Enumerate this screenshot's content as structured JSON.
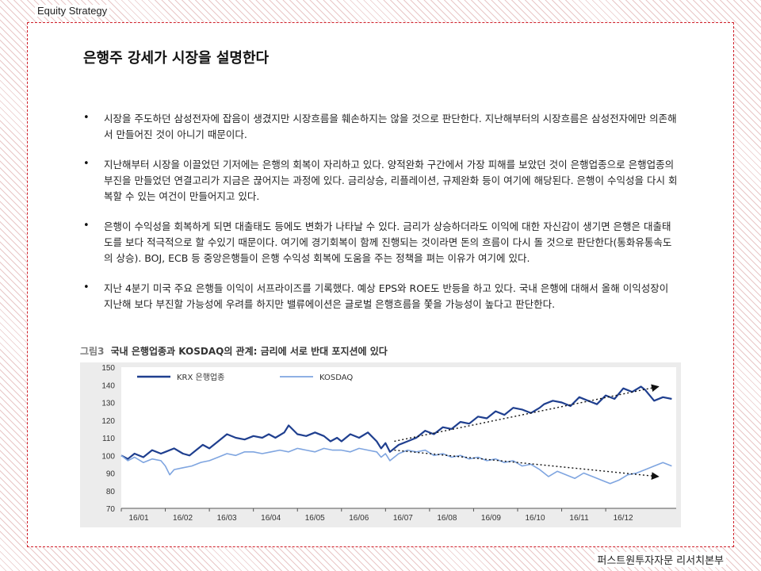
{
  "header": {
    "label": "Equity  Strategy"
  },
  "slide": {
    "title": "은행주 강세가 시장을 설명한다"
  },
  "bullets": [
    "시장을 주도하던 삼성전자에 잡음이 생겼지만 시장흐름을 훼손하지는 않을 것으로 판단한다. 지난해부터의 시장흐름은 삼성전자에만 의존해서 만들어진 것이 아니기 때문이다.",
    "지난해부터 시장을 이끌었던 기저에는 은행의 회복이 자리하고 있다. 양적완화 구간에서 가장 피해를 보았던 것이 은행업종으로 은행업종의 부진을 만들었던 연결고리가 지금은 끊어지는 과정에 있다. 금리상승, 리플레이션, 규제완화 등이 여기에 해당된다. 은행이 수익성을 다시 회복할 수 있는 여건이 만들어지고 있다.",
    "은행이 수익성을 회복하게 되면 대출태도 등에도 변화가 나타날 수 있다. 금리가 상승하더라도 이익에 대한 자신감이 생기면 은행은 대출태도를 보다 적극적으로 할 수있기 때문이다. 여기에 경기회복이 함께 진행되는 것이라면 돈의 흐름이 다시 돌 것으로 판단한다(통화유통속도의 상승). BOJ, ECB 등 중앙은행들이 은행 수익성 회복에 도움을 주는 정책을 펴는 이유가 여기에 있다.",
    "지난 4분기 미국 주요 은행들 이익이 서프라이즈를 기록했다. 예상 EPS와 ROE도 반등을 하고 있다. 국내 은행에 대해서 올해 이익성장이 지난해 보다 부진할 가능성에 우려를 하지만 밸류에이션은 글로벌 은행흐름을 쫓을 가능성이 높다고 판단한다."
  ],
  "figure": {
    "number": "그림3",
    "caption": "국내 은행업종과 KOSDAQ의 관계: 금리에 서로 반대 포지션에 있다"
  },
  "footer": {
    "label": "퍼스트원투자자문 리서치본부"
  },
  "colors": {
    "krx_bank": "#1f3f8f",
    "kosdaq": "#7fa5e0",
    "panel_border": "#d0202a",
    "chart_bg": "#ececec",
    "trend_arrow": "#111111"
  },
  "chart_data": {
    "type": "line",
    "x_ticks": [
      "16/01",
      "16/02",
      "16/03",
      "16/04",
      "16/05",
      "16/06",
      "16/07",
      "16/08",
      "16/09",
      "16/10",
      "16/11",
      "16/12"
    ],
    "y_ticks": [
      70,
      80,
      90,
      100,
      110,
      120,
      130,
      140,
      150
    ],
    "ylim": [
      70,
      150
    ],
    "xlim": [
      0,
      12.6
    ],
    "grid": false,
    "legend_position": "top-left",
    "series": [
      {
        "name": "KRX 은행업종",
        "color": "#1f3f8f",
        "x": [
          0,
          0.15,
          0.3,
          0.5,
          0.7,
          0.9,
          1.0,
          1.2,
          1.4,
          1.55,
          1.7,
          1.85,
          2.0,
          2.2,
          2.4,
          2.6,
          2.8,
          3.0,
          3.2,
          3.35,
          3.5,
          3.7,
          3.8,
          4.0,
          4.2,
          4.4,
          4.6,
          4.75,
          4.9,
          5.0,
          5.2,
          5.4,
          5.6,
          5.8,
          5.9,
          6.0,
          6.1,
          6.3,
          6.5,
          6.7,
          6.9,
          7.1,
          7.3,
          7.5,
          7.7,
          7.9,
          8.1,
          8.3,
          8.5,
          8.7,
          8.9,
          9.1,
          9.3,
          9.5,
          9.6,
          9.8,
          10.0,
          10.2,
          10.4,
          10.6,
          10.8,
          11.0,
          11.2,
          11.4,
          11.6,
          11.8,
          11.9,
          12.1,
          12.3,
          12.5
        ],
        "values": [
          100,
          98,
          101,
          99,
          103,
          101,
          102,
          104,
          101,
          100,
          103,
          106,
          104,
          108,
          112,
          110,
          109,
          111,
          110,
          112,
          110,
          113,
          117,
          112,
          111,
          113,
          111,
          108,
          110,
          108,
          112,
          110,
          113,
          108,
          104,
          107,
          102,
          106,
          108,
          110,
          114,
          112,
          116,
          115,
          119,
          118,
          122,
          121,
          125,
          123,
          127,
          126,
          124,
          127,
          129,
          131,
          130,
          128,
          133,
          131,
          129,
          134,
          132,
          138,
          136,
          139,
          137,
          131,
          133,
          132
        ]
      },
      {
        "name": "KOSDAQ",
        "color": "#7fa5e0",
        "x": [
          0,
          0.15,
          0.3,
          0.5,
          0.7,
          0.9,
          1.0,
          1.1,
          1.2,
          1.4,
          1.6,
          1.8,
          2.0,
          2.2,
          2.4,
          2.6,
          2.8,
          3.0,
          3.2,
          3.4,
          3.6,
          3.8,
          4.0,
          4.2,
          4.4,
          4.6,
          4.8,
          5.0,
          5.2,
          5.4,
          5.6,
          5.8,
          5.9,
          6.0,
          6.1,
          6.3,
          6.5,
          6.7,
          6.9,
          7.1,
          7.3,
          7.5,
          7.7,
          7.9,
          8.1,
          8.3,
          8.5,
          8.7,
          8.9,
          9.1,
          9.3,
          9.5,
          9.7,
          9.9,
          10.1,
          10.3,
          10.5,
          10.7,
          10.9,
          11.1,
          11.3,
          11.5,
          11.7,
          11.9,
          12.1,
          12.3,
          12.5
        ],
        "values": [
          100,
          97,
          99,
          96,
          98,
          97,
          94,
          89,
          92,
          93,
          94,
          96,
          97,
          99,
          101,
          100,
          102,
          102,
          101,
          102,
          103,
          102,
          104,
          103,
          102,
          104,
          103,
          103,
          102,
          104,
          103,
          102,
          99,
          101,
          97,
          101,
          103,
          102,
          103,
          100,
          101,
          99,
          100,
          98,
          99,
          97,
          98,
          96,
          97,
          94,
          95,
          92,
          88,
          91,
          89,
          87,
          90,
          88,
          86,
          84,
          86,
          89,
          90,
          92,
          94,
          96,
          94
        ]
      }
    ],
    "annotations": [
      {
        "kind": "arrow",
        "style": "dotted",
        "from": [
          6.2,
          108
        ],
        "to": [
          12.2,
          139
        ]
      },
      {
        "kind": "arrow",
        "style": "dotted",
        "from": [
          6.2,
          103
        ],
        "to": [
          12.2,
          88
        ]
      }
    ]
  }
}
